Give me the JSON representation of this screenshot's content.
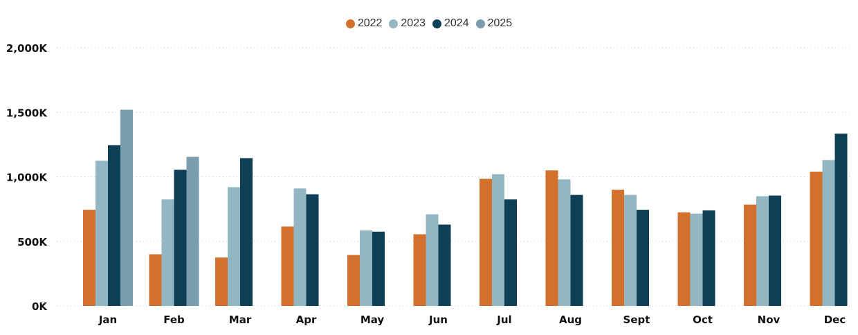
{
  "chart_data": {
    "type": "bar",
    "title": "",
    "xlabel": "",
    "ylabel": "",
    "ylim": [
      0,
      2000000
    ],
    "yticks": [
      0,
      500000,
      1000000,
      1500000,
      2000000
    ],
    "ytick_labels": [
      "0K",
      "500K",
      "1,000K",
      "1,500K",
      "2,000K"
    ],
    "grid": true,
    "legend_position": "top-center",
    "categories": [
      "Jan",
      "Feb",
      "Mar",
      "Apr",
      "May",
      "Jun",
      "Jul",
      "Aug",
      "Sept",
      "Oct",
      "Nov",
      "Dec"
    ],
    "series": [
      {
        "name": "2022",
        "color": "#D2702D",
        "values": [
          745000,
          400000,
          375000,
          615000,
          395000,
          555000,
          985000,
          1050000,
          900000,
          725000,
          785000,
          1040000
        ]
      },
      {
        "name": "2023",
        "color": "#93B7C2",
        "values": [
          1125000,
          825000,
          920000,
          910000,
          585000,
          710000,
          1020000,
          980000,
          860000,
          715000,
          850000,
          1130000
        ]
      },
      {
        "name": "2024",
        "color": "#0D3F57",
        "values": [
          1245000,
          1055000,
          1145000,
          865000,
          575000,
          630000,
          825000,
          860000,
          745000,
          740000,
          855000,
          1335000
        ]
      },
      {
        "name": "2025",
        "color": "#7A9EAF",
        "values": [
          1520000,
          1155000,
          null,
          null,
          null,
          null,
          null,
          null,
          null,
          null,
          null,
          null
        ]
      }
    ]
  }
}
